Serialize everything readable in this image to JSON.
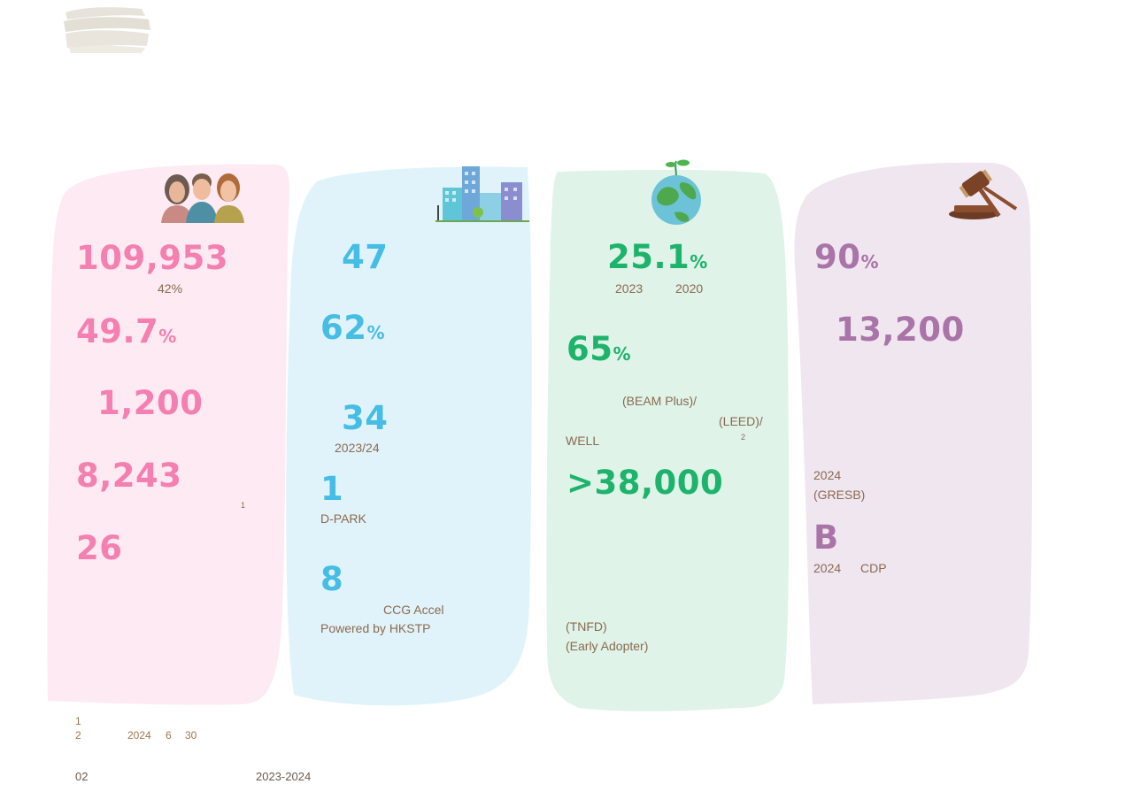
{
  "colors": {
    "pink_bg": "#fdeaf2",
    "pink_text": "#f47fb0",
    "blue_bg": "#e1f3fa",
    "blue_text": "#45bde4",
    "green_bg": "#dff3e8",
    "green_text": "#1db36b",
    "purple_bg": "#f0e6f0",
    "purple_text": "#a974a7",
    "note_text": "#8a6a4f"
  },
  "icons": {
    "people": "people-icon",
    "buildings": "buildings-icon",
    "earth": "earth-sprout-icon",
    "gavel": "gavel-icon"
  },
  "social": {
    "stat1": "109,953",
    "stat1_note": "42%",
    "stat2": "49.7",
    "stat2_unit": "%",
    "stat3": "1,200",
    "stat4": "8,243",
    "stat4_sup": "1",
    "stat5": "26"
  },
  "innovation": {
    "stat1": "47",
    "stat2": "62",
    "stat2_unit": "%",
    "stat3": "34",
    "stat3_note": "2023/24",
    "stat4": "1",
    "stat4_note": "D-PARK",
    "stat5": "8",
    "stat5_note1": "CCG Accel",
    "stat5_note2": "Powered by HKSTP"
  },
  "environment": {
    "stat1": "25.1",
    "stat1_unit": "%",
    "stat1_note_a": "2023",
    "stat1_note_b": "2020",
    "stat2": "65",
    "stat2_unit": "%",
    "stat2_note1": "(BEAM Plus)/",
    "stat2_note2": "(LEED)/",
    "stat2_note3": "WELL",
    "stat2_sup": "2",
    "stat3": ">38,000",
    "stat3_note1": "(TNFD)",
    "stat3_note2": "(Early Adopter)"
  },
  "governance": {
    "stat1": "90",
    "stat1_unit": "%",
    "stat2": "13,200",
    "stat3_note1": "2024",
    "stat3_note2": "(GRESB)",
    "stat4": "B",
    "stat4_note_a": "2024",
    "stat4_note_b": "CDP"
  },
  "footnotes": {
    "n1": "1",
    "n2": "2",
    "n2_year": "2024",
    "n2_month": "6",
    "n2_day": "30"
  },
  "footer": {
    "page": "02",
    "period": "2023-2024"
  }
}
